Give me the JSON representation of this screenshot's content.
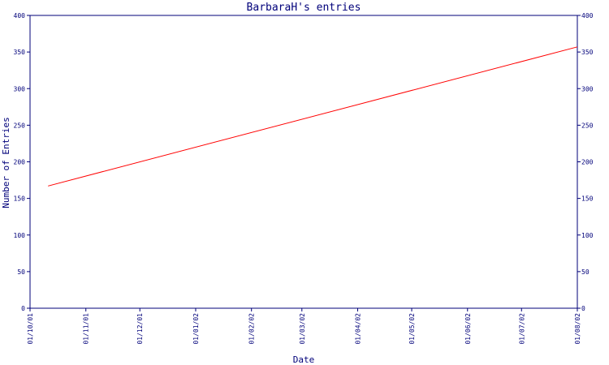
{
  "colors": {
    "axis": "#00007a",
    "series": "#ff0000",
    "background": "#ffffff"
  },
  "chart_data": {
    "type": "line",
    "title": "BarbaraH's entries",
    "xlabel": "Date",
    "ylabel": "Number of Entries",
    "ylim": [
      0,
      400
    ],
    "y_ticks": [
      0,
      50,
      100,
      150,
      200,
      250,
      300,
      350,
      400
    ],
    "x_range": [
      "2001-10-01",
      "2002-08-01"
    ],
    "x_ticks": [
      {
        "date": "2001-10-01",
        "label": "01/10/01"
      },
      {
        "date": "2001-11-01",
        "label": "01/11/01"
      },
      {
        "date": "2001-12-01",
        "label": "01/12/01"
      },
      {
        "date": "2002-01-01",
        "label": "01/01/02"
      },
      {
        "date": "2002-02-01",
        "label": "01/02/02"
      },
      {
        "date": "2002-03-01",
        "label": "01/03/02"
      },
      {
        "date": "2002-04-01",
        "label": "01/04/02"
      },
      {
        "date": "2002-05-01",
        "label": "01/05/02"
      },
      {
        "date": "2002-06-01",
        "label": "01/06/02"
      },
      {
        "date": "2002-07-01",
        "label": "01/07/02"
      },
      {
        "date": "2002-08-01",
        "label": "01/08/02"
      }
    ],
    "series": [
      {
        "points": [
          {
            "x": "2001-10-11",
            "y": 167
          },
          {
            "x": "2002-08-01",
            "y": 357
          }
        ]
      }
    ],
    "grid": false,
    "legend": "none"
  }
}
